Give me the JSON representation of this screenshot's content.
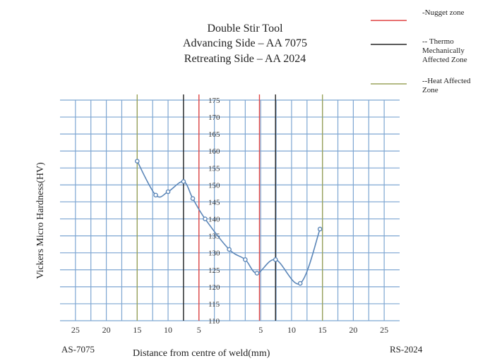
{
  "chart_data": {
    "type": "line",
    "title_lines": [
      "Double Stir Tool",
      "Advancing Side – AA 7075",
      "Retreating Side – AA 2024"
    ],
    "xlabel": "Distance from centre of weld(mm)",
    "ylabel": "Vickers Micro Hardness(HV)",
    "x_tick_labels_left": [
      "25",
      "20",
      "15",
      "10",
      "5"
    ],
    "x_tick_labels_right": [
      "5",
      "10",
      "15",
      "20",
      "25"
    ],
    "x_side_labels": {
      "left": "AS-7075",
      "right": "RS-2024"
    },
    "ylim": [
      110,
      175
    ],
    "y_ticks": [
      110,
      115,
      120,
      125,
      130,
      135,
      140,
      145,
      150,
      155,
      160,
      165,
      170,
      175
    ],
    "xlim": [
      -27.5,
      27.5
    ],
    "grid": true,
    "series": [
      {
        "x": [
          -15,
          -12,
          -10,
          -7.5,
          -6,
          -4,
          -0.1,
          2.5,
          4.4,
          7.4,
          11.4,
          14.6
        ],
        "y": [
          157,
          147,
          148,
          151,
          146,
          140,
          131,
          128,
          124,
          128,
          121,
          137
        ]
      }
    ],
    "zone_lines": [
      {
        "x": -15,
        "zone": "heat"
      },
      {
        "x": -7.5,
        "zone": "thermo"
      },
      {
        "x": -5,
        "zone": "nugget"
      },
      {
        "x": 4.8,
        "zone": "nugget"
      },
      {
        "x": 7.4,
        "zone": "thermo"
      },
      {
        "x": 15,
        "zone": "heat"
      }
    ],
    "legend": [
      {
        "label": "-Nugget zone",
        "color": "#e04545",
        "zone": "nugget"
      },
      {
        "label": "-- Thermo Mechanically Affected Zone",
        "color": "#222222",
        "zone": "thermo"
      },
      {
        "label": "--Heat Affected Zone",
        "color": "#9aa35c",
        "zone": "heat"
      }
    ],
    "legend_position": "top-right",
    "colors": {
      "grid": "#7ea6d2",
      "curve": "#5b86b8"
    }
  }
}
